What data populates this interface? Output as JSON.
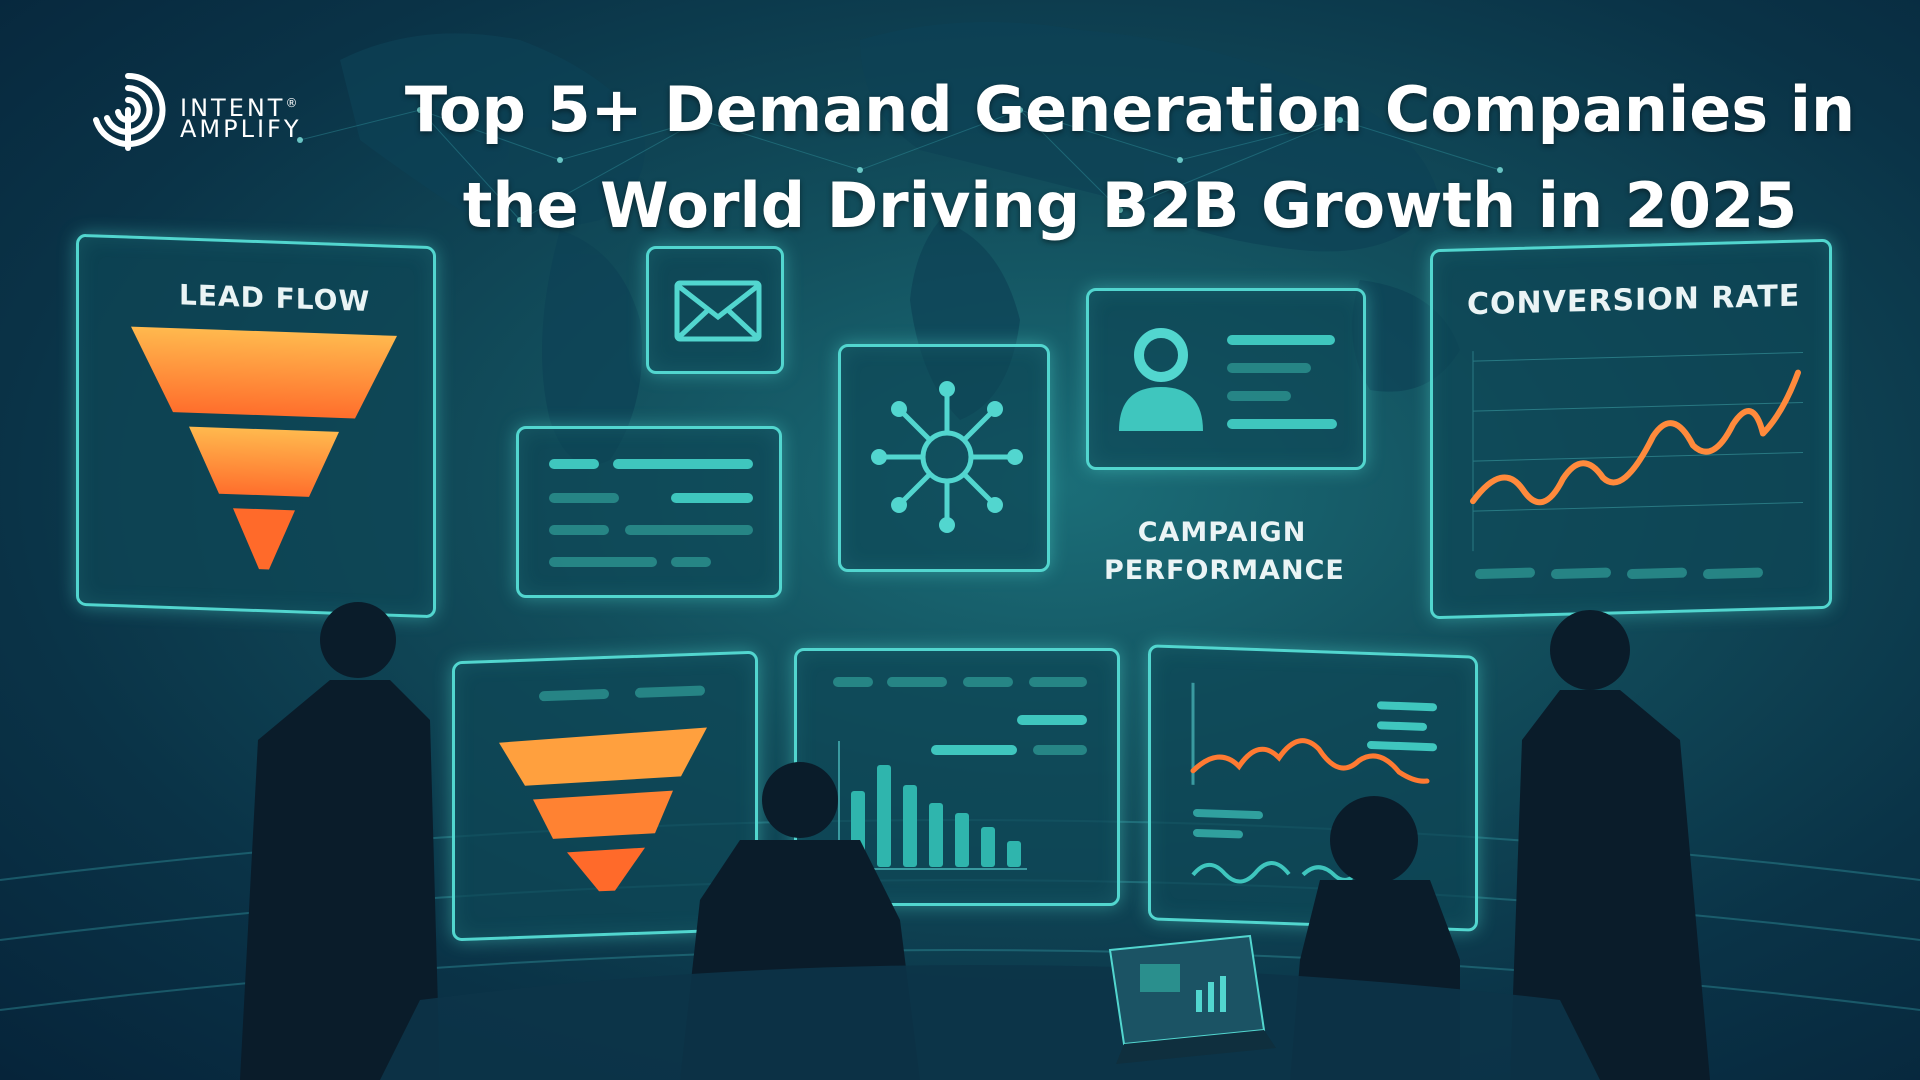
{
  "brand": {
    "name_line1": "Intent",
    "name_line2": "Amplify",
    "registered_mark": "®"
  },
  "headline": {
    "line1": "Top 5+ Demand Generation Companies in",
    "line2": "the World Driving B2B Growth in 2025"
  },
  "panels": {
    "lead_flow": {
      "title": "LEAD FLOW"
    },
    "conversion_rate": {
      "title": "CONVERSION RATE"
    },
    "campaign_performance": {
      "line1": "CAMPAIGN",
      "line2": "PERFORMANCE"
    }
  },
  "icons": [
    "logo-mark-icon",
    "envelope-icon",
    "network-hub-icon",
    "user-profile-icon",
    "funnel-icon",
    "line-chart-icon",
    "bar-chart-icon",
    "laptop-icon"
  ],
  "colors": {
    "background": "#0a3347",
    "accent_teal": "#52d6cf",
    "funnel_orange": "#ff8a3c",
    "funnel_light": "#ffb04a",
    "text": "#ffffff"
  }
}
